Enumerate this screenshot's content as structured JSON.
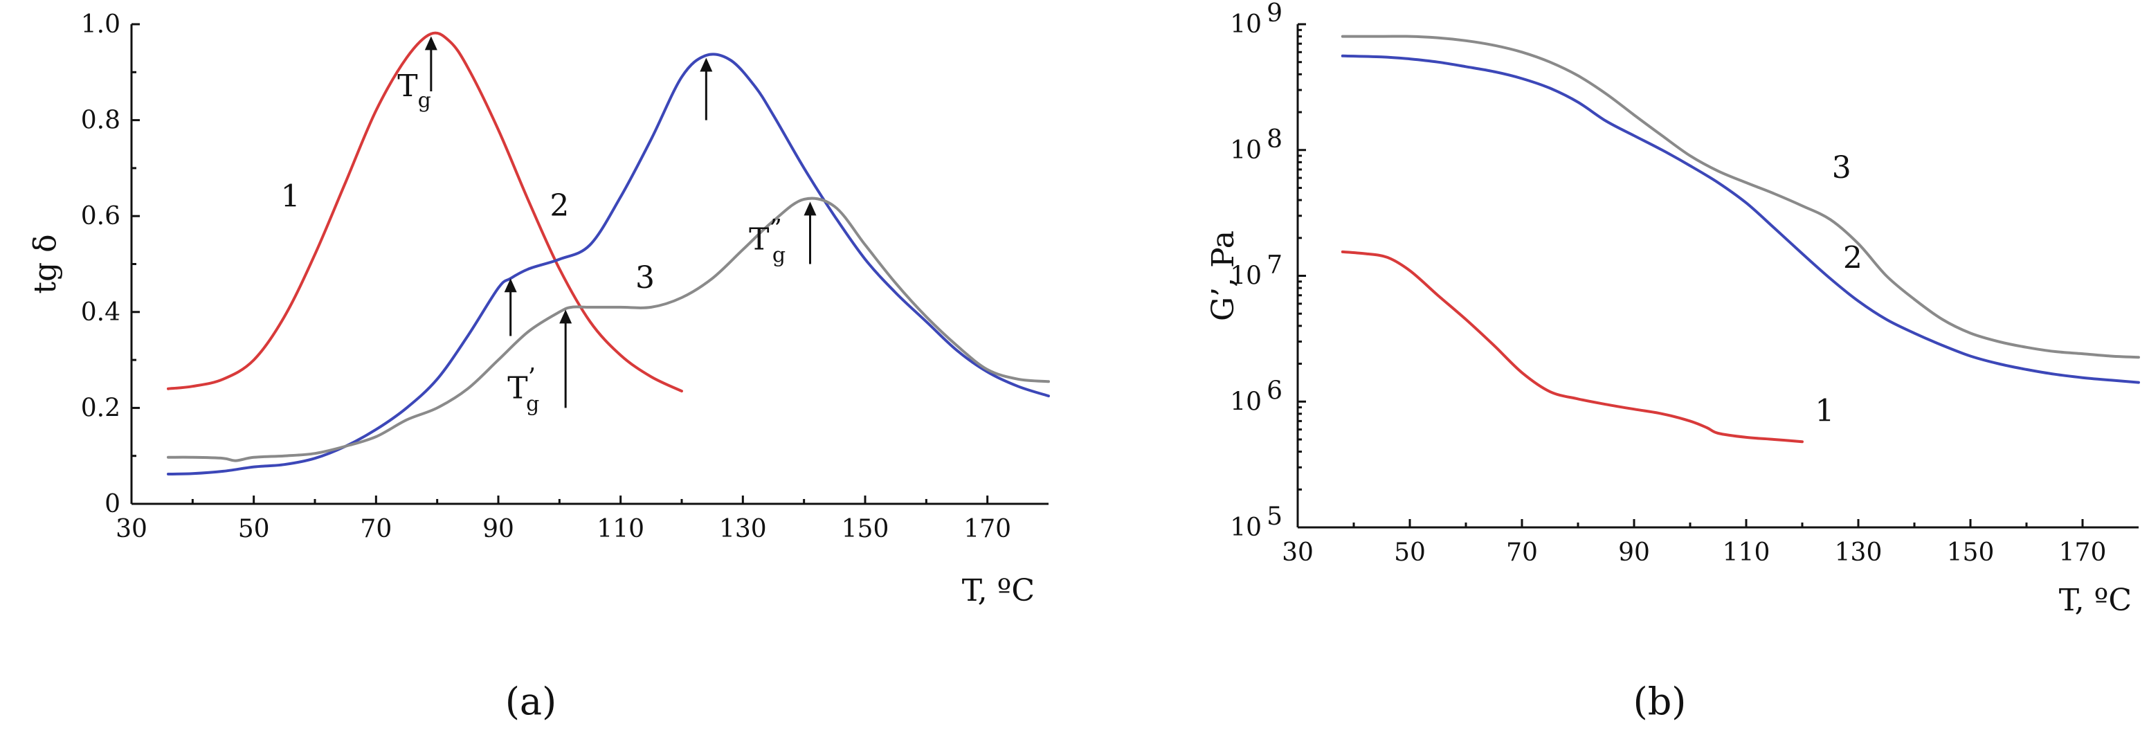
{
  "chart_data": [
    {
      "type": "line",
      "panel": "a",
      "panel_label": "(a)",
      "xlabel": "T, ºC",
      "ylabel": "tg δ",
      "xlim": [
        30,
        180
      ],
      "ylim": [
        0,
        1.0
      ],
      "xticks": [
        "30",
        "50",
        "70",
        "90",
        "110",
        "130",
        "150",
        "170"
      ],
      "yticks": [
        "0",
        "0.2",
        "0.4",
        "0.6",
        "0.8",
        "1.0"
      ],
      "series": [
        {
          "name": "1",
          "color": "#d83a3a",
          "x": [
            36,
            40,
            45,
            50,
            55,
            60,
            65,
            70,
            75,
            79,
            82,
            85,
            90,
            95,
            100,
            105,
            110,
            115,
            120
          ],
          "y": [
            0.24,
            0.245,
            0.26,
            0.3,
            0.39,
            0.52,
            0.67,
            0.82,
            0.93,
            0.98,
            0.965,
            0.91,
            0.78,
            0.63,
            0.49,
            0.38,
            0.31,
            0.265,
            0.235
          ]
        },
        {
          "name": "2",
          "color": "#3c47b8",
          "x": [
            36,
            40,
            45,
            50,
            55,
            60,
            65,
            70,
            75,
            80,
            85,
            90,
            92,
            95,
            100,
            105,
            110,
            115,
            120,
            124,
            128,
            132,
            135,
            140,
            145,
            150,
            155,
            160,
            165,
            170,
            175,
            180
          ],
          "y": [
            0.062,
            0.063,
            0.068,
            0.077,
            0.082,
            0.095,
            0.12,
            0.155,
            0.2,
            0.26,
            0.35,
            0.45,
            0.47,
            0.49,
            0.51,
            0.54,
            0.64,
            0.76,
            0.89,
            0.935,
            0.925,
            0.87,
            0.81,
            0.7,
            0.6,
            0.51,
            0.44,
            0.38,
            0.32,
            0.275,
            0.245,
            0.225
          ]
        },
        {
          "name": "3",
          "color": "#8a8a8a",
          "x": [
            36,
            40,
            45,
            47,
            50,
            55,
            60,
            65,
            70,
            75,
            80,
            85,
            90,
            95,
            100,
            102,
            105,
            110,
            115,
            120,
            125,
            130,
            135,
            140,
            145,
            150,
            155,
            160,
            165,
            170,
            175,
            180
          ],
          "y": [
            0.097,
            0.097,
            0.095,
            0.09,
            0.097,
            0.1,
            0.105,
            0.12,
            0.14,
            0.175,
            0.2,
            0.24,
            0.3,
            0.36,
            0.4,
            0.41,
            0.41,
            0.41,
            0.41,
            0.43,
            0.47,
            0.53,
            0.59,
            0.635,
            0.62,
            0.54,
            0.46,
            0.39,
            0.33,
            0.28,
            0.26,
            0.255
          ]
        }
      ],
      "curve_labels": [
        {
          "text": "1",
          "x": 56,
          "y": 0.62
        },
        {
          "text": "2",
          "x": 100,
          "y": 0.6
        },
        {
          "text": "3",
          "x": 114,
          "y": 0.45
        }
      ],
      "annotations": [
        {
          "type": "arrow",
          "x": 79,
          "y_from": 0.86,
          "y_to": 0.975
        },
        {
          "type": "arrow",
          "x": 124,
          "y_from": 0.8,
          "y_to": 0.93
        },
        {
          "type": "arrow",
          "x": 92,
          "y_from": 0.35,
          "y_to": 0.47
        },
        {
          "type": "arrow",
          "x": 101,
          "y_from": 0.2,
          "y_to": 0.405
        },
        {
          "type": "arrow",
          "x": 141,
          "y_from": 0.5,
          "y_to": 0.63
        },
        {
          "type": "text",
          "text": "T",
          "sub": "g",
          "sup": "",
          "x": 73.5,
          "y": 0.85
        },
        {
          "type": "text",
          "text": "T",
          "sub": "g",
          "sup": "’",
          "x": 91.5,
          "y": 0.22
        },
        {
          "type": "text",
          "text": "T",
          "sub": "g",
          "sup": "”",
          "x": 131,
          "y": 0.53
        }
      ]
    },
    {
      "type": "line",
      "panel": "b",
      "panel_label": "(b)",
      "xlabel": "T, ºC",
      "ylabel": "G’, Pa",
      "yscale": "log",
      "xlim": [
        30,
        180
      ],
      "ylim": [
        100000,
        1000000000
      ],
      "xticks": [
        "30",
        "50",
        "70",
        "90",
        "110",
        "130",
        "150",
        "170"
      ],
      "yticks": [
        {
          "base": "10",
          "exp": "5",
          "value": 100000
        },
        {
          "base": "10",
          "exp": "6",
          "value": 1000000
        },
        {
          "base": "10",
          "exp": "7",
          "value": 10000000
        },
        {
          "base": "10",
          "exp": "8",
          "value": 100000000
        },
        {
          "base": "10",
          "exp": "9",
          "value": 1000000000
        }
      ],
      "series": [
        {
          "name": "1",
          "color": "#d83a3a",
          "x": [
            38,
            42,
            46,
            50,
            55,
            60,
            65,
            70,
            75,
            80,
            85,
            90,
            95,
            100,
            103,
            105,
            110,
            115,
            120
          ],
          "y": [
            15500000,
            15000000,
            14000000,
            11000000,
            7000000,
            4500000,
            2800000,
            1700000,
            1200000,
            1050000,
            950000,
            870000,
            800000,
            700000,
            620000,
            560000,
            520000,
            500000,
            480000
          ]
        },
        {
          "name": "2",
          "color": "#3c47b8",
          "x": [
            38,
            45,
            50,
            55,
            60,
            65,
            70,
            75,
            80,
            85,
            90,
            95,
            100,
            105,
            110,
            115,
            120,
            125,
            130,
            135,
            140,
            145,
            150,
            155,
            160,
            165,
            170,
            175,
            180
          ],
          "y": [
            560000000,
            550000000,
            530000000,
            500000000,
            460000000,
            420000000,
            370000000,
            310000000,
            240000000,
            170000000,
            130000000,
            100000000,
            75000000,
            55000000,
            38000000,
            24000000,
            15000000,
            9500000,
            6300000,
            4500000,
            3500000,
            2800000,
            2300000,
            2000000,
            1800000,
            1650000,
            1550000,
            1480000,
            1420000
          ]
        },
        {
          "name": "3",
          "color": "#8a8a8a",
          "x": [
            38,
            45,
            50,
            55,
            60,
            65,
            70,
            75,
            80,
            85,
            90,
            95,
            100,
            105,
            110,
            115,
            120,
            125,
            130,
            135,
            140,
            145,
            150,
            155,
            160,
            165,
            170,
            175,
            180
          ],
          "y": [
            800000000,
            800000000,
            800000000,
            780000000,
            740000000,
            680000000,
            600000000,
            500000000,
            390000000,
            280000000,
            190000000,
            130000000,
            90000000,
            68000000,
            55000000,
            45000000,
            36000000,
            28000000,
            18000000,
            10000000,
            6500000,
            4500000,
            3500000,
            3000000,
            2700000,
            2500000,
            2400000,
            2300000,
            2250000
          ]
        }
      ],
      "curve_labels": [
        {
          "text": "1",
          "x": 124,
          "y": 700000
        },
        {
          "text": "2",
          "x": 129,
          "y": 11500000
        },
        {
          "text": "3",
          "x": 127,
          "y": 60000000
        }
      ]
    }
  ]
}
